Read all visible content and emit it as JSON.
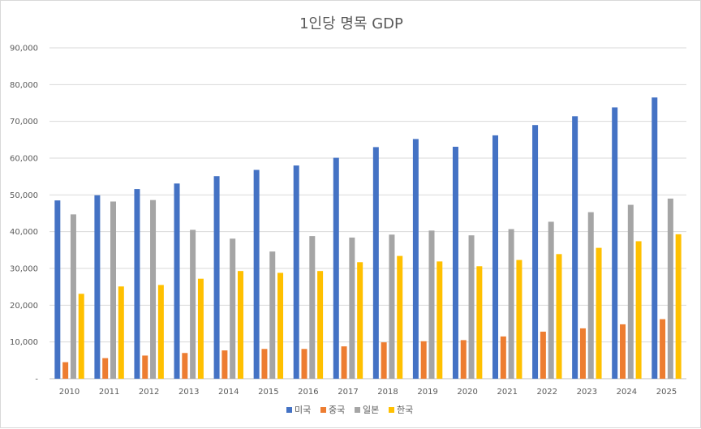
{
  "chart_data": {
    "type": "bar",
    "title": "1인당 명목 GDP",
    "xlabel": "",
    "ylabel": "",
    "ylim": [
      0,
      90000
    ],
    "yticks": [
      "-",
      "10,000",
      "20,000",
      "30,000",
      "40,000",
      "50,000",
      "60,000",
      "70,000",
      "80,000",
      "90,000"
    ],
    "grid": true,
    "legend_position": "bottom",
    "categories": [
      "2010",
      "2011",
      "2012",
      "2013",
      "2014",
      "2015",
      "2016",
      "2017",
      "2018",
      "2019",
      "2020",
      "2021",
      "2022",
      "2023",
      "2024",
      "2025"
    ],
    "series": [
      {
        "name": "미국",
        "color": "#4472c4",
        "values": [
          48500,
          49900,
          51600,
          53100,
          55100,
          56800,
          58000,
          60100,
          63000,
          65200,
          63100,
          66200,
          69000,
          71400,
          73800,
          76500
        ]
      },
      {
        "name": "중국",
        "color": "#ed7d31",
        "values": [
          4500,
          5600,
          6300,
          7000,
          7700,
          8100,
          8100,
          8800,
          9900,
          10200,
          10500,
          11500,
          12800,
          13700,
          14800,
          16200
        ]
      },
      {
        "name": "일본",
        "color": "#a5a5a5",
        "values": [
          44700,
          48200,
          48600,
          40500,
          38100,
          34600,
          38800,
          38400,
          39200,
          40300,
          39000,
          40700,
          42700,
          45300,
          47300,
          49000
        ]
      },
      {
        "name": "한국",
        "color": "#ffc000",
        "values": [
          23100,
          25100,
          25500,
          27200,
          29300,
          28800,
          29300,
          31700,
          33400,
          31900,
          30600,
          32300,
          33900,
          35600,
          37400,
          39300
        ]
      }
    ]
  }
}
